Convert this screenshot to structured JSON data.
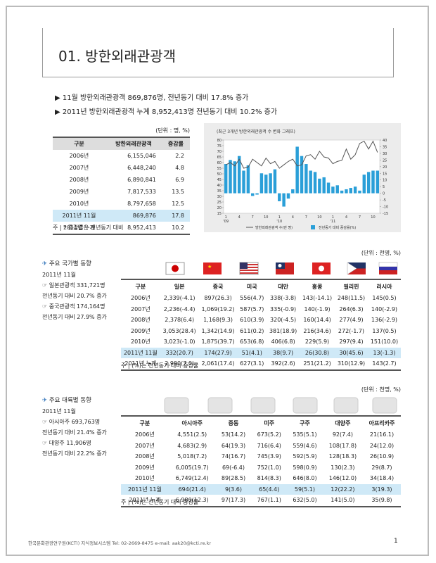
{
  "header": {
    "title": "01. 방한외래관광객"
  },
  "bullets": [
    "11월 방한외래관광객 869,876명, 전년동기 대비 17.8% 증가",
    "2011년 방한외래관광객 누계 8,952,413명 전년동기 대비 10.2% 증가"
  ],
  "table1": {
    "unit": "(단위 : 명, %)",
    "columns": [
      "구분",
      "방한외래관광객",
      "증감률"
    ],
    "rows": [
      [
        "2006년",
        "6,155,046",
        "2.2"
      ],
      [
        "2007년",
        "6,448,240",
        "4.8"
      ],
      [
        "2008년",
        "6,890,841",
        "6.9"
      ],
      [
        "2009년",
        "7,817,533",
        "13.5"
      ],
      [
        "2010년",
        "8,797,658",
        "12.5"
      ],
      [
        "2011년 11월",
        "869,876",
        "17.8"
      ],
      [
        "2011년 누계",
        "8,952,413",
        "10.2"
      ]
    ],
    "note": "주 | * 증감률은 전년동기 대비"
  },
  "chart_data": {
    "type": "bar-line",
    "title": "(최근 3개년 방한외래관광객 수 변화 그래프)",
    "categories": [
      "1",
      null,
      null,
      "4",
      null,
      null,
      "7",
      null,
      null,
      "10",
      null,
      null,
      "1",
      null,
      null,
      "4",
      null,
      null,
      "7",
      null,
      null,
      "10",
      null,
      null,
      "1",
      null,
      null,
      "4",
      null,
      null,
      "7",
      null,
      null,
      "10",
      null
    ],
    "year_labels": [
      "'09",
      "'10",
      "'11"
    ],
    "series": [
      {
        "name": "방한외래관광객 수(만 명)",
        "color": "#555555",
        "type": "line",
        "values": [
          58,
          60,
          57,
          63,
          55,
          56,
          63,
          60,
          57,
          64,
          59,
          61,
          55,
          58,
          61,
          63,
          57,
          58,
          66,
          67,
          63,
          70,
          65,
          64,
          59,
          61,
          62,
          72,
          63,
          67,
          77,
          79,
          72,
          79,
          69
        ]
      },
      {
        "name": "전년동기 대비 증감률(%)",
        "color": "#2a9fd8",
        "type": "bar",
        "axis": "y2",
        "values": [
          22,
          25,
          24,
          28,
          17,
          21,
          -2,
          -1,
          15,
          14,
          15,
          18,
          -6,
          -10,
          -4,
          3,
          35,
          28,
          22,
          17,
          16,
          11,
          12,
          8,
          5,
          6,
          2,
          3,
          4,
          5,
          2,
          14,
          16,
          17,
          17
        ]
      }
    ],
    "ylim": [
      15,
      80
    ],
    "yticks": [
      15,
      20,
      25,
      30,
      35,
      40,
      45,
      50,
      55,
      60,
      65,
      70,
      75,
      80
    ],
    "y2lim": [
      -15,
      40
    ],
    "y2ticks": [
      -15,
      -10,
      -5,
      0,
      5,
      10,
      15,
      20,
      25,
      30,
      35,
      40
    ]
  },
  "section2": {
    "heading": "주요 국가별 동향",
    "lines": [
      "2011년 11월",
      "☞ 일본관광객 331,721명",
      "전년동기 대비 20.7% 증가",
      "☞ 중국관광객 174,164명",
      "전년동기 대비 27.9% 증가"
    ]
  },
  "table2": {
    "unit": "(단위 : 천명, %)",
    "columns": [
      "구분",
      "일본",
      "중국",
      "미국",
      "대만",
      "홍콩",
      "필리핀",
      "러시아"
    ],
    "rows": [
      [
        "2006년",
        "2,339(-4.1)",
        "897(26.3)",
        "556(4.7)",
        "338(-3.8)",
        "143(-14.1)",
        "248(11.5)",
        "145(0.5)"
      ],
      [
        "2007년",
        "2,236(-4.4)",
        "1,069(19.2)",
        "587(5.7)",
        "335(-0.9)",
        "140(-1.9)",
        "264(6.3)",
        "140(-2.9)"
      ],
      [
        "2008년",
        "2,378(6.4)",
        "1,168(9.3)",
        "610(3.9)",
        "320(-4.5)",
        "160(14.4)",
        "277(4.9)",
        "136(-2.9)"
      ],
      [
        "2009년",
        "3,053(28.4)",
        "1,342(14.9)",
        "611(0.2)",
        "381(18.9)",
        "216(34.6)",
        "272(-1.7)",
        "137(0.5)"
      ],
      [
        "2010년",
        "3,023(-1.0)",
        "1,875(39.7)",
        "653(6.8)",
        "406(6.8)",
        "229(5.9)",
        "297(9.4)",
        "151(10.0)"
      ],
      [
        "2011년 11월",
        "332(20.7)",
        "174(27.9)",
        "51(4.1)",
        "38(9.7)",
        "26(30.8)",
        "30(45.6)",
        "13(-1.3)"
      ],
      [
        "2011년 누계",
        "2,990(7.0)",
        "2,061(17.4)",
        "627(3.1)",
        "392(2.6)",
        "251(21.2)",
        "310(12.9)",
        "143(2.7)"
      ]
    ],
    "note": "주 | (%)는 전년동기 대비 증감률"
  },
  "section3": {
    "heading": "주요 대륙별 동향",
    "lines": [
      "2011년 11월",
      "☞ 아시아주 693,763명",
      "전년동기 대비 21.4% 증가",
      "☞ 대양주 11,906명",
      "전년동기 대비 22.2% 증가"
    ]
  },
  "table3": {
    "unit": "(단위 : 천명, %)",
    "columns": [
      "구분",
      "아시아주",
      "중동",
      "미주",
      "구주",
      "대양주",
      "아프리카주"
    ],
    "rows": [
      [
        "2006년",
        "4,551(2.5)",
        "53(14.2)",
        "673(5.2)",
        "535(5.1)",
        "92(7.4)",
        "21(16.1)"
      ],
      [
        "2007년",
        "4,683(2.9)",
        "64(19.3)",
        "716(6.4)",
        "559(4.6)",
        "108(17.8)",
        "24(12.0)"
      ],
      [
        "2008년",
        "5,018(7.2)",
        "74(16.7)",
        "745(3.9)",
        "592(5.9)",
        "128(18.3)",
        "26(10.9)"
      ],
      [
        "2009년",
        "6,005(19.7)",
        "69(-6.4)",
        "752(1.0)",
        "598(0.9)",
        "130(2.3)",
        "29(8.7)"
      ],
      [
        "2010년",
        "6,749(12.4)",
        "89(28.5)",
        "814(8.3)",
        "646(8.0)",
        "146(12.0)",
        "34(18.4)"
      ],
      [
        "2011년 11월",
        "694(21.4)",
        "9(3.6)",
        "65(4.4)",
        "59(5.1)",
        "12(22.2)",
        "3(19.3)"
      ],
      [
        "2011년 누계",
        "6,980(12.3)",
        "97(17.3)",
        "767(1.1)",
        "632(5.0)",
        "141(5.0)",
        "35(9.8)"
      ]
    ],
    "note": "주 | (%)는 전년동기 대비 증감률"
  },
  "footer": {
    "text": "한국문화관광연구원(KCTI) 지식정보시스템   Tel: 02-2669-8475  e-mail: aak20@kcti.re.kr",
    "page": "1"
  }
}
